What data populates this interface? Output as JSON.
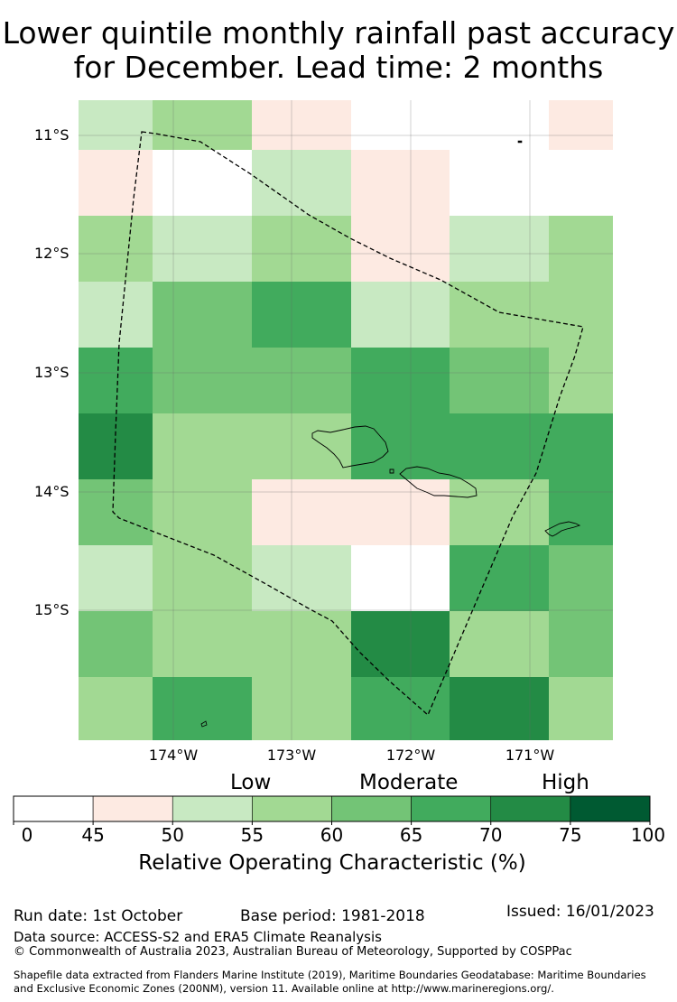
{
  "title": {
    "line1": "Lower quintile monthly rainfall past accuracy",
    "line2": "for December. Lead time: 2 months"
  },
  "map": {
    "latitude_labels": [
      "11°S",
      "12°S",
      "13°S",
      "14°S",
      "15°S"
    ],
    "longitude_labels": [
      "174°W",
      "173°W",
      "172°W",
      "171°W"
    ],
    "grid_columns_lon": [
      -174.75,
      -174.0,
      -173.0,
      -172.0,
      -171.0,
      -170.5
    ],
    "grid_rows_lat": [
      -10.75,
      -11.2,
      -11.75,
      -12.3,
      -12.85,
      -13.4,
      -13.95,
      -14.5,
      -15.05,
      -15.6
    ],
    "cell_bins": [
      [
        2,
        3,
        1,
        0,
        0,
        1
      ],
      [
        1,
        0,
        2,
        1,
        0,
        0
      ],
      [
        3,
        2,
        3,
        1,
        2,
        3
      ],
      [
        2,
        4,
        5,
        2,
        3,
        3
      ],
      [
        5,
        4,
        4,
        5,
        4,
        3
      ],
      [
        6,
        3,
        3,
        5,
        5,
        5
      ],
      [
        4,
        3,
        1,
        1,
        3,
        5
      ],
      [
        2,
        3,
        2,
        0,
        5,
        4
      ],
      [
        4,
        3,
        3,
        6,
        3,
        4
      ],
      [
        3,
        5,
        3,
        5,
        6,
        3
      ]
    ]
  },
  "colorbar": {
    "category_labels": [
      "Low",
      "Moderate",
      "High"
    ],
    "ticks": [
      "0",
      "45",
      "50",
      "55",
      "60",
      "65",
      "70",
      "75",
      "100"
    ],
    "colors": [
      "#ffffff",
      "#fdeae2",
      "#c8e9c2",
      "#a2d993",
      "#73c476",
      "#41ab5d",
      "#238b45",
      "#005a32"
    ],
    "label": "Relative Operating Characteristic (%)"
  },
  "footer": {
    "run_date": "Run date: 1st October",
    "base_period": "Base period: 1981-2018",
    "issued": "Issued: 16/01/2023",
    "data_source": "Data source: ACCESS-S2 and ERA5 Climate Reanalysis",
    "copyright": "© Commonwealth of Australia 2023, Australian Bureau of Meteorology, Supported by COSPPac",
    "shapefile_line1": "Shapefile data extracted from Flanders Marine Institute (2019), Maritime Boundaries Geodatabase: Maritime Boundaries",
    "shapefile_line2": "and Exclusive Economic Zones (200NM), version 11. Available online at http://www.marineregions.org/."
  }
}
